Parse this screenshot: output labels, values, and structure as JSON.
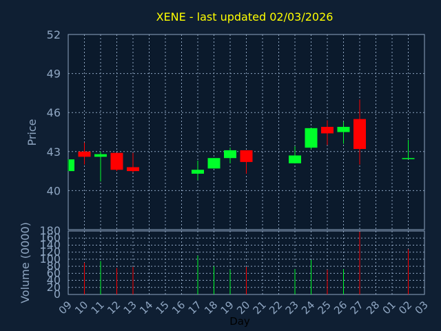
{
  "chart_data": [
    {
      "type": "candlestick",
      "title": "XENE - last updated 02/03/2026",
      "ylabel": "Price",
      "ylim": [
        37,
        52
      ],
      "yticks": [
        40,
        43,
        46,
        49,
        52
      ],
      "grid": true,
      "colors": {
        "up": "#00ff2a",
        "down": "#ff0000",
        "title": "#ffff00",
        "axis_text": "#8fa6c2",
        "background": "#0f1f33",
        "plot": "#0b1a2c"
      },
      "candles": [
        {
          "day": "09",
          "open": 41.5,
          "high": 42.4,
          "low": 41.5,
          "close": 42.4
        },
        {
          "day": "10",
          "open": 43.0,
          "high": 43.7,
          "low": 42.0,
          "close": 42.6
        },
        {
          "day": "11",
          "open": 42.6,
          "high": 43.0,
          "low": 40.7,
          "close": 42.8
        },
        {
          "day": "12",
          "open": 42.9,
          "high": 42.9,
          "low": 41.5,
          "close": 41.6
        },
        {
          "day": "13",
          "open": 41.8,
          "high": 42.9,
          "low": 41.4,
          "close": 41.5
        },
        {
          "day": "17",
          "open": 41.3,
          "high": 42.3,
          "low": 40.8,
          "close": 41.6
        },
        {
          "day": "18",
          "open": 41.7,
          "high": 42.5,
          "low": 41.7,
          "close": 42.5
        },
        {
          "day": "19",
          "open": 42.5,
          "high": 43.3,
          "low": 42.1,
          "close": 43.1
        },
        {
          "day": "20",
          "open": 43.1,
          "high": 43.1,
          "low": 41.3,
          "close": 42.2
        },
        {
          "day": "23",
          "open": 42.1,
          "high": 43.4,
          "low": 42.1,
          "close": 42.7
        },
        {
          "day": "24",
          "open": 43.3,
          "high": 44.8,
          "low": 43.2,
          "close": 44.8
        },
        {
          "day": "25",
          "open": 44.9,
          "high": 45.4,
          "low": 43.5,
          "close": 44.4
        },
        {
          "day": "26",
          "open": 44.5,
          "high": 45.3,
          "low": 43.6,
          "close": 44.9
        },
        {
          "day": "27",
          "open": 45.5,
          "high": 47.0,
          "low": 42.0,
          "close": 43.2
        },
        {
          "day": "02",
          "open": 42.5,
          "high": 43.9,
          "low": 42.5,
          "close": 42.5
        }
      ]
    },
    {
      "type": "bar",
      "ylabel": "Volume (0000)",
      "xlabel": "Day",
      "ylim": [
        0,
        180
      ],
      "yticks": [
        0,
        20,
        40,
        60,
        80,
        100,
        120,
        140,
        160,
        180
      ],
      "grid": true,
      "categories": [
        "09",
        "10",
        "11",
        "12",
        "13",
        "14",
        "15",
        "16",
        "17",
        "18",
        "19",
        "20",
        "21",
        "22",
        "23",
        "24",
        "25",
        "26",
        "27",
        "28",
        "01",
        "02",
        "03"
      ],
      "volumes": [
        {
          "day": "10",
          "value": 90,
          "color": "#ff0000"
        },
        {
          "day": "11",
          "value": 95,
          "color": "#00ff2a"
        },
        {
          "day": "12",
          "value": 75,
          "color": "#ff0000"
        },
        {
          "day": "13",
          "value": 78,
          "color": "#ff0000"
        },
        {
          "day": "17",
          "value": 110,
          "color": "#00ff2a"
        },
        {
          "day": "18",
          "value": 80,
          "color": "#00ff2a"
        },
        {
          "day": "19",
          "value": 70,
          "color": "#00ff2a"
        },
        {
          "day": "20",
          "value": 78,
          "color": "#ff0000"
        },
        {
          "day": "23",
          "value": 72,
          "color": "#00ff2a"
        },
        {
          "day": "24",
          "value": 98,
          "color": "#00ff2a"
        },
        {
          "day": "25",
          "value": 70,
          "color": "#ff0000"
        },
        {
          "day": "26",
          "value": 72,
          "color": "#00ff2a"
        },
        {
          "day": "27",
          "value": 178,
          "color": "#ff0000"
        },
        {
          "day": "02",
          "value": 128,
          "color": "#ff0000"
        }
      ]
    }
  ]
}
